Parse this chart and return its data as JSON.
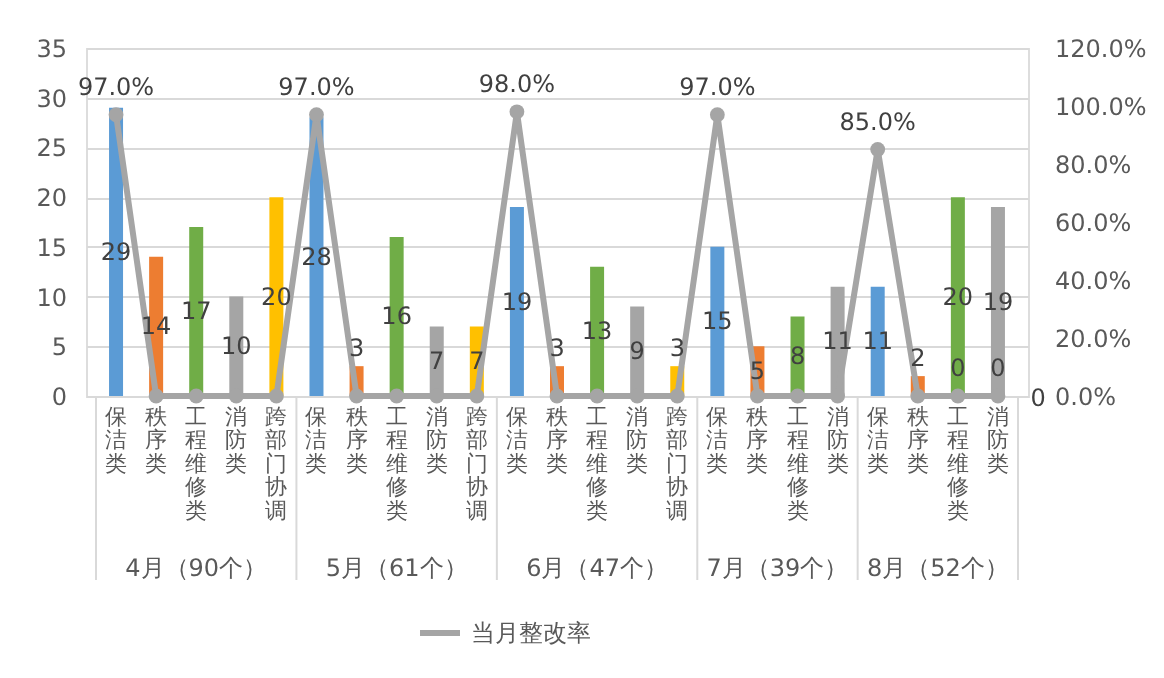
{
  "chart_data": {
    "type": "bar",
    "categories": [
      "保洁类",
      "秩序类",
      "工程维修类",
      "消防类",
      "跨部门协调",
      "保洁类",
      "秩序类",
      "工程维修类",
      "消防类",
      "跨部门协调",
      "保洁类",
      "秩序类",
      "工程维修类",
      "消防类",
      "跨部门协调",
      "保洁类",
      "秩序类",
      "工程维修类",
      "消防类",
      "保洁类",
      "秩序类",
      "工程维修类",
      "消防类"
    ],
    "annotations": [
      "4月（90个）",
      "5月（61个）",
      "6月（47个）",
      "7月（39个）",
      "8月（52个）",
      "0"
    ],
    "series": [
      {
        "colors": [
          "#5b9bd5",
          "#ed7d31",
          "#70ad47",
          "#a5a5a5",
          "#ffc000",
          "#5b9bd5",
          "#ed7d31",
          "#70ad47",
          "#a5a5a5",
          "#ffc000",
          "#5b9bd5",
          "#ed7d31",
          "#70ad47",
          "#a5a5a5",
          "#ffc000",
          "#5b9bd5",
          "#ed7d31",
          "#70ad47",
          "#a5a5a5",
          "#5b9bd5",
          "#ed7d31",
          "#70ad47",
          "#a5a5a5"
        ],
        "values": [
          29,
          14,
          17,
          10,
          20,
          28,
          3,
          16,
          7,
          7,
          19,
          3,
          13,
          9,
          3,
          15,
          5,
          8,
          11,
          11,
          2,
          20,
          19
        ],
        "value_labels": [
          "29",
          "14",
          "17",
          "10",
          "20",
          "28",
          "3",
          "16",
          "7",
          "7",
          "19",
          "3",
          "13",
          "9",
          "3",
          "15",
          "5",
          "8",
          "11",
          "11",
          "2",
          "20",
          "19"
        ]
      },
      {
        "type": "line",
        "name": "当月整改率",
        "color": "#a5a5a5",
        "axis": "y2",
        "values": [
          97,
          0,
          0,
          0,
          0,
          97,
          0,
          0,
          0,
          0,
          98,
          0,
          0,
          0,
          0,
          97,
          0,
          0,
          0,
          85,
          0,
          0,
          0
        ],
        "value_labels": [
          "97.0%",
          null,
          null,
          null,
          null,
          "97.0%",
          null,
          null,
          null,
          null,
          "98.0%",
          null,
          null,
          null,
          null,
          "97.0%",
          null,
          null,
          null,
          "85.0%",
          null,
          "0",
          "0"
        ]
      }
    ],
    "ylim": [
      0,
      35
    ],
    "yticks": [
      0,
      5,
      10,
      15,
      20,
      25,
      30,
      35
    ],
    "y2lim": [
      0,
      120
    ],
    "y2ticks": [
      {
        "value": 0,
        "label": "0.0%"
      },
      {
        "value": 20,
        "label": "20.0%"
      },
      {
        "value": 40,
        "label": "40.0%"
      },
      {
        "value": 60,
        "label": "60.0%"
      },
      {
        "value": 80,
        "label": "80.0%"
      },
      {
        "value": 100,
        "label": "100.0%"
      },
      {
        "value": 120,
        "label": "120.0%"
      }
    ],
    "grid": "y",
    "legend": "bottom",
    "marker": "circle",
    "line_style": "solid"
  }
}
